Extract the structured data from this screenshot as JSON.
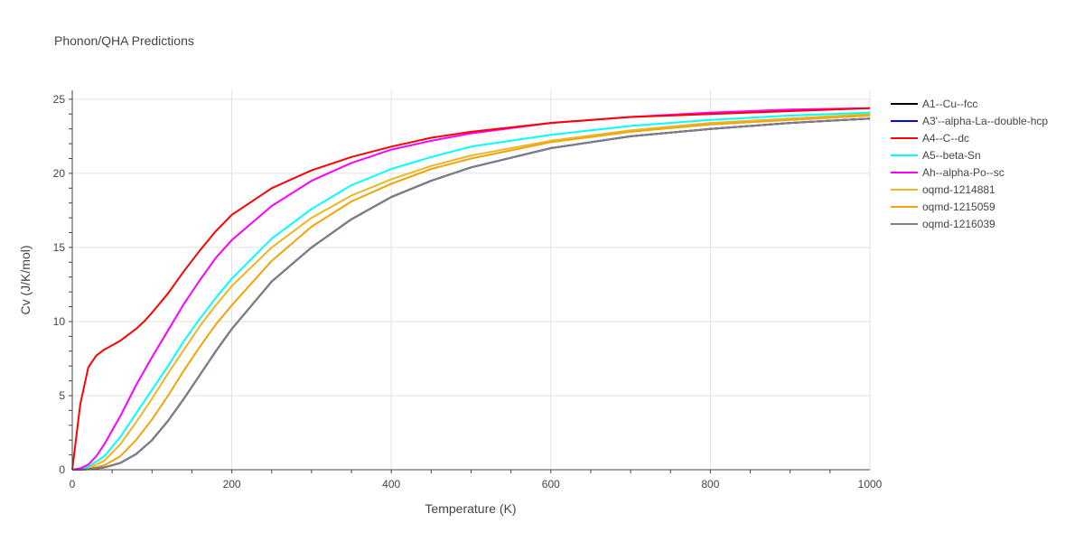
{
  "chart_data": {
    "type": "line",
    "title": "Phonon/QHA Predictions",
    "xlabel": "Temperature (K)",
    "ylabel": "Cv (J/K/mol)",
    "xlim": [
      0,
      1000
    ],
    "ylim": [
      0,
      25.6
    ],
    "xticks": [
      0,
      200,
      400,
      600,
      800,
      1000
    ],
    "yticks": [
      0,
      5,
      10,
      15,
      20,
      25
    ],
    "grid": true,
    "legend_position": "right",
    "series": [
      {
        "name": "A1--Cu--fcc",
        "color": "#000000",
        "x": [
          0,
          20,
          40,
          60,
          80,
          100,
          120,
          140,
          160,
          180,
          200,
          250,
          300,
          350,
          400,
          450,
          500,
          600,
          700,
          800,
          900,
          1000
        ],
        "y": [
          0,
          0.03,
          0.15,
          0.45,
          1.05,
          2.0,
          3.3,
          4.8,
          6.4,
          8.0,
          9.5,
          12.7,
          15.0,
          16.9,
          18.4,
          19.5,
          20.4,
          21.7,
          22.5,
          23.0,
          23.4,
          23.7
        ]
      },
      {
        "name": "A3'--alpha-La--double-hcp",
        "color": "#0000ff",
        "x": [
          0,
          20,
          40,
          60,
          80,
          100,
          120,
          140,
          160,
          180,
          200,
          250,
          300,
          350,
          400,
          450,
          500,
          600,
          700,
          800,
          900,
          1000
        ],
        "y": [
          0,
          0.03,
          0.15,
          0.45,
          1.05,
          2.0,
          3.3,
          4.8,
          6.4,
          8.0,
          9.5,
          12.7,
          15.0,
          16.9,
          18.4,
          19.5,
          20.4,
          21.7,
          22.5,
          23.0,
          23.4,
          23.7
        ]
      },
      {
        "name": "A4--C--dc",
        "color": "#ff0000",
        "x": [
          0,
          10,
          20,
          30,
          40,
          50,
          60,
          70,
          80,
          90,
          100,
          120,
          140,
          160,
          180,
          200,
          250,
          300,
          350,
          400,
          450,
          500,
          600,
          700,
          800,
          900,
          1000
        ],
        "y": [
          0,
          4.4,
          6.9,
          7.7,
          8.1,
          8.4,
          8.7,
          9.1,
          9.5,
          10.0,
          10.6,
          11.9,
          13.4,
          14.8,
          16.1,
          17.2,
          19.0,
          20.2,
          21.1,
          21.8,
          22.4,
          22.8,
          23.4,
          23.8,
          24.0,
          24.2,
          24.4
        ]
      },
      {
        "name": "A5--beta-Sn",
        "color": "#00ffff",
        "x": [
          0,
          20,
          40,
          60,
          80,
          100,
          120,
          140,
          160,
          180,
          200,
          250,
          300,
          350,
          400,
          450,
          500,
          600,
          700,
          800,
          900,
          1000
        ],
        "y": [
          0,
          0.2,
          0.9,
          2.2,
          3.8,
          5.4,
          7.0,
          8.7,
          10.2,
          11.6,
          12.9,
          15.6,
          17.6,
          19.2,
          20.3,
          21.1,
          21.8,
          22.6,
          23.2,
          23.6,
          23.9,
          24.1
        ]
      },
      {
        "name": "Ah--alpha-Po--sc",
        "color": "#ff00ff",
        "x": [
          0,
          10,
          20,
          30,
          40,
          60,
          80,
          100,
          120,
          140,
          160,
          180,
          200,
          250,
          300,
          350,
          400,
          450,
          500,
          600,
          700,
          800,
          900,
          1000
        ],
        "y": [
          0,
          0.1,
          0.35,
          0.9,
          1.7,
          3.6,
          5.7,
          7.6,
          9.4,
          11.2,
          12.8,
          14.3,
          15.5,
          17.8,
          19.5,
          20.7,
          21.6,
          22.2,
          22.7,
          23.4,
          23.8,
          24.1,
          24.3,
          24.4
        ]
      },
      {
        "name": "oqmd-1214881",
        "color": "#eeb422",
        "x": [
          0,
          20,
          40,
          60,
          80,
          100,
          120,
          140,
          160,
          180,
          200,
          250,
          300,
          350,
          400,
          450,
          500,
          600,
          700,
          800,
          900,
          1000
        ],
        "y": [
          0,
          0.1,
          0.6,
          1.7,
          3.2,
          4.8,
          6.5,
          8.1,
          9.7,
          11.1,
          12.4,
          15.0,
          17.0,
          18.5,
          19.6,
          20.5,
          21.2,
          22.2,
          22.9,
          23.4,
          23.7,
          24.0
        ]
      },
      {
        "name": "oqmd-1215059",
        "color": "#f0a30a",
        "x": [
          0,
          20,
          40,
          60,
          80,
          100,
          120,
          140,
          160,
          180,
          200,
          250,
          300,
          350,
          400,
          450,
          500,
          600,
          700,
          800,
          900,
          1000
        ],
        "y": [
          0,
          0.05,
          0.3,
          0.9,
          2.0,
          3.4,
          5.0,
          6.7,
          8.3,
          9.8,
          11.1,
          14.1,
          16.4,
          18.1,
          19.3,
          20.3,
          21.0,
          22.1,
          22.8,
          23.3,
          23.6,
          23.9
        ]
      },
      {
        "name": "oqmd-1216039",
        "color": "#808080",
        "x": [
          0,
          20,
          40,
          60,
          80,
          100,
          120,
          140,
          160,
          180,
          200,
          250,
          300,
          350,
          400,
          450,
          500,
          600,
          700,
          800,
          900,
          1000
        ],
        "y": [
          0,
          0.03,
          0.15,
          0.45,
          1.05,
          2.0,
          3.3,
          4.8,
          6.4,
          8.0,
          9.5,
          12.7,
          15.0,
          16.9,
          18.4,
          19.5,
          20.4,
          21.7,
          22.5,
          23.0,
          23.4,
          23.7
        ]
      }
    ]
  }
}
